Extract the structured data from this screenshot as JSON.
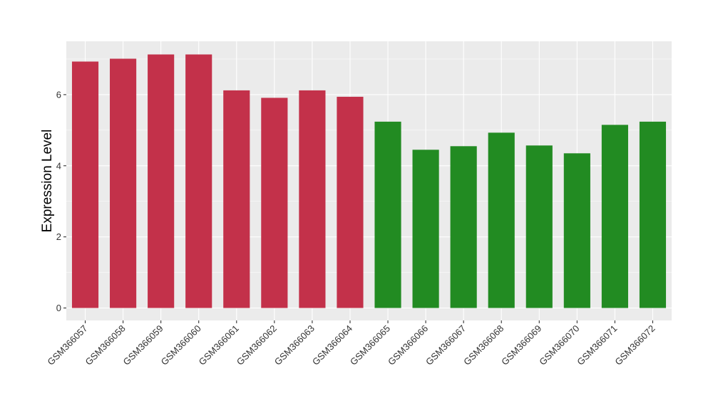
{
  "chart_data": {
    "type": "bar",
    "title": "",
    "xlabel": "",
    "ylabel": "Expression Level",
    "ylim": [
      -0.35,
      7.5
    ],
    "yticks": [
      0,
      2,
      4,
      6
    ],
    "grid": true,
    "legend": "none",
    "categories": [
      "GSM366057",
      "GSM366058",
      "GSM366059",
      "GSM366060",
      "GSM366061",
      "GSM366062",
      "GSM366063",
      "GSM366064",
      "GSM366065",
      "GSM366066",
      "GSM366067",
      "GSM366068",
      "GSM366069",
      "GSM366070",
      "GSM366071",
      "GSM366072"
    ],
    "values": [
      6.93,
      7.01,
      7.13,
      7.13,
      6.12,
      5.91,
      6.12,
      5.94,
      5.24,
      4.45,
      4.55,
      4.93,
      4.57,
      4.35,
      5.15,
      5.24
    ],
    "colors": [
      "#C3314A",
      "#C3314A",
      "#C3314A",
      "#C3314A",
      "#C3314A",
      "#C3314A",
      "#C3314A",
      "#C3314A",
      "#228B22",
      "#228B22",
      "#228B22",
      "#228B22",
      "#228B22",
      "#228B22",
      "#228B22",
      "#228B22"
    ],
    "panel_background": "#EBEBEB",
    "gridline_color": "#FFFFFF"
  }
}
